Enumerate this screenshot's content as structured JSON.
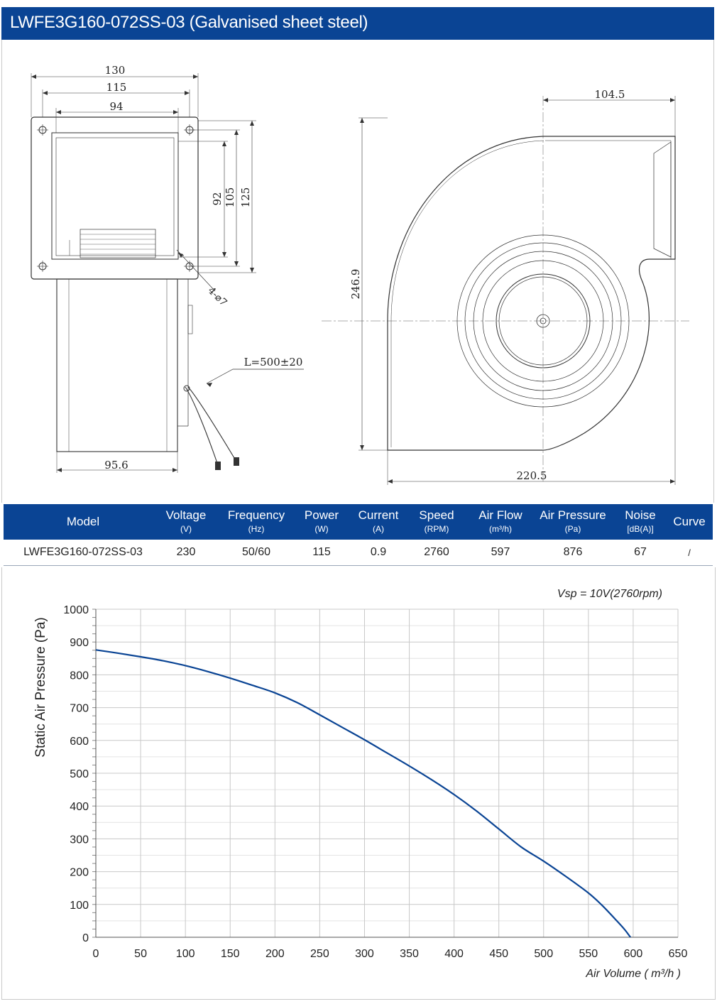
{
  "header": {
    "title": "LWFE3G160-072SS-03 (Galvanised sheet steel)"
  },
  "drawing": {
    "front": {
      "dim_width_outer": "130",
      "dim_width_holes": "115",
      "dim_width_outlet": "94",
      "dim_height_outlet": "92",
      "dim_height_holes": "105",
      "dim_height_outer": "125",
      "hole_spec": "4-⌀7",
      "dim_depth": "95.6",
      "cable_length": "L=500±20"
    },
    "side": {
      "dim_top": "104.5",
      "dim_height": "246.9",
      "dim_width": "220.5"
    }
  },
  "specs": {
    "headers": [
      {
        "name": "Model",
        "unit": ""
      },
      {
        "name": "Voltage",
        "unit": "(V)"
      },
      {
        "name": "Frequency",
        "unit": "(Hz)"
      },
      {
        "name": "Power",
        "unit": "(W)"
      },
      {
        "name": "Current",
        "unit": "(A)"
      },
      {
        "name": "Speed",
        "unit": "(RPM)"
      },
      {
        "name": "Air Flow",
        "unit": "(m³/h)"
      },
      {
        "name": "Air Pressure",
        "unit": "(Pa)"
      },
      {
        "name": "Noise",
        "unit": "[dB(A)]"
      },
      {
        "name": "Curve",
        "unit": ""
      }
    ],
    "row": {
      "model": "LWFE3G160-072SS-03",
      "voltage": "230",
      "frequency": "50/60",
      "power": "115",
      "current": "0.9",
      "speed": "2760",
      "air_flow": "597",
      "air_pressure": "876",
      "noise": "67",
      "curve": "/"
    }
  },
  "chart_data": {
    "type": "line",
    "annotation": "Vsp = 10V(2760rpm)",
    "xlabel": "Air Volume ( m³/h )",
    "ylabel": "Static Air Pressure  (Pa)",
    "xlim": [
      0,
      650
    ],
    "ylim": [
      0,
      1000
    ],
    "x_ticks": [
      0,
      50,
      100,
      150,
      200,
      250,
      300,
      350,
      400,
      450,
      500,
      550,
      600,
      650
    ],
    "y_ticks": [
      0,
      100,
      200,
      300,
      400,
      500,
      600,
      700,
      800,
      900,
      1000
    ],
    "grid": true,
    "line_color": "#0a4494",
    "series": [
      {
        "x": [
          0,
          25,
          50,
          75,
          100,
          125,
          150,
          175,
          200,
          225,
          250,
          275,
          300,
          325,
          350,
          375,
          400,
          425,
          450,
          475,
          500,
          525,
          550,
          565,
          580,
          590,
          597
        ],
        "y": [
          876,
          866,
          855,
          843,
          828,
          810,
          790,
          768,
          745,
          715,
          678,
          640,
          602,
          562,
          522,
          480,
          435,
          385,
          330,
          275,
          232,
          185,
          135,
          98,
          55,
          25,
          0
        ]
      }
    ]
  }
}
